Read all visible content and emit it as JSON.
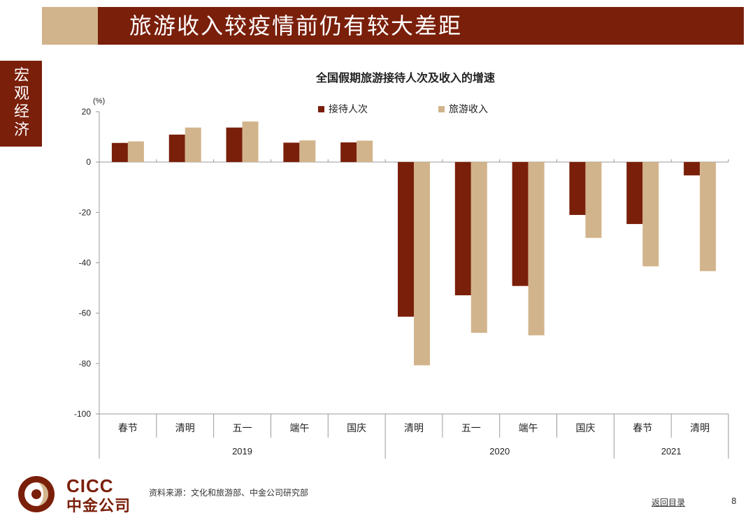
{
  "header": {
    "title": "旅游收入较疫情前仍有较大差距"
  },
  "side_tab": {
    "label": "宏观经济"
  },
  "footer": {
    "source": "资料来源：文化和旅游部、中金公司研究部",
    "back_link": "返回目录",
    "page_number": "8"
  },
  "logo": {
    "en": "CICC",
    "cn": "中金公司"
  },
  "colors": {
    "brand": "#7a1f0a",
    "accent": "#d2b48c",
    "series1": "#7a1f0a",
    "series2": "#d2b48c"
  },
  "chart_data": {
    "type": "bar",
    "title": "全国假期旅游接待人次及收入的增速",
    "ylabel": "(%)",
    "ylim": [
      -100,
      20
    ],
    "yticks": [
      20,
      0,
      -20,
      -40,
      -60,
      -80,
      -100
    ],
    "grid": false,
    "legend_position": "top-center",
    "categories": [
      "春节",
      "清明",
      "五一",
      "端午",
      "国庆",
      "清明",
      "五一",
      "端午",
      "国庆",
      "春节",
      "清明"
    ],
    "groups": [
      {
        "label": "2019",
        "count": 5
      },
      {
        "label": "2020",
        "count": 4
      },
      {
        "label": "2021",
        "count": 2
      }
    ],
    "series": [
      {
        "name": "接待人次",
        "values": [
          7.6,
          10.9,
          13.7,
          7.7,
          7.8,
          -61.4,
          -52.9,
          -49.2,
          -21.0,
          -24.6,
          -5.3
        ]
      },
      {
        "name": "旅游收入",
        "values": [
          8.2,
          13.7,
          16.1,
          8.6,
          8.5,
          -80.7,
          -67.8,
          -68.8,
          -30.1,
          -41.4,
          -43.3
        ]
      }
    ]
  }
}
